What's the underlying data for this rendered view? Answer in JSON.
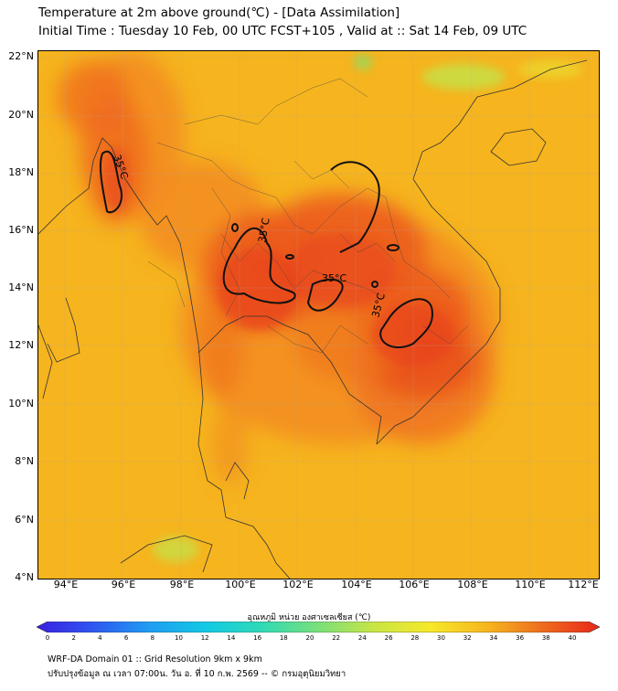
{
  "header": {
    "title": "Temperature at 2m above ground(℃) - [Data Assimilation]",
    "subtitle": "Initial Time : Tuesday 10 Feb, 00 UTC FCST+105 , Valid at :: Sat 14 Feb, 09 UTC"
  },
  "map": {
    "lat_labels": [
      "22°N",
      "20°N",
      "18°N",
      "16°N",
      "14°N",
      "12°N",
      "10°N",
      "8°N",
      "6°N",
      "4°N"
    ],
    "lon_labels": [
      "94°E",
      "96°E",
      "98°E",
      "100°E",
      "102°E",
      "104°E",
      "106°E",
      "108°E",
      "110°E",
      "112°E"
    ],
    "contour_labels": [
      "35°C",
      "35°C",
      "35°C",
      "35°C"
    ],
    "colors": {
      "background_warm": "#f6b61e",
      "hot": "#ee5a1d",
      "very_hot": "#e8431b",
      "cool_green": "#b8dd49",
      "contour": "#1a1a1a",
      "border": "#333333"
    }
  },
  "colorbar": {
    "title": "อุณหภูมิ หน่วย องศาเซลเซียส (℃)",
    "tick_labels": [
      "0",
      "2",
      "4",
      "6",
      "8",
      "10",
      "12",
      "14",
      "16",
      "18",
      "20",
      "22",
      "24",
      "26",
      "28",
      "30",
      "32",
      "34",
      "36",
      "38",
      "40"
    ],
    "colors": [
      "#3a1fe0",
      "#2f56f0",
      "#1f9df2",
      "#13c9e4",
      "#2fdab6",
      "#79e07a",
      "#c9e545",
      "#f7e82a",
      "#f6b61e",
      "#ee6b1d",
      "#e8261a"
    ]
  },
  "footer": {
    "line1": "WRF-DA Domain 01 :: Grid Resolution 9km x 9km",
    "line2": "ปรับปรุงข้อมูล ณ เวลา 07:00น. วัน อ. ที่ 10 ก.พ. 2569 -- © กรมอุตุนิยมวิทยา"
  }
}
